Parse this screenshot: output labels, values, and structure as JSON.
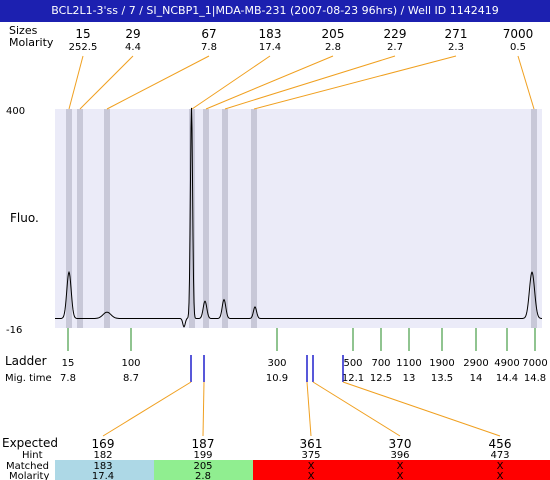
{
  "window": {
    "title": "BCL2L1-3'ss / 7 / SI_NCBP1_1|MDA-MB-231 (2007-08-23 96hrs) / Well ID 1142419"
  },
  "labels": {
    "sizes": "Sizes",
    "molarity": "Molarity",
    "fluo": "Fluo.",
    "ladder": "Ladder",
    "mig_time": "Mig. time",
    "expected": "Expected",
    "hint": "Hint",
    "matched": "Matched",
    "molarity_bottom": "Molarity",
    "y_max": "400",
    "y_min": "-16"
  },
  "colors": {
    "title_bg": "#1c20b0",
    "plot_bg": "#ebebf8",
    "peak_band": "#c8c8d8",
    "connector": "#f0a020",
    "ladder_tick": "#228822",
    "ladder_marker": "#2020cc",
    "expected_red": "#dd2222",
    "matched_blue": "#add8e6",
    "matched_green": "#90ee90",
    "matched_red": "#ff0000"
  },
  "chart_data": {
    "type": "line",
    "ylabel": "Fluo.",
    "ylim": [
      -16,
      400
    ],
    "peaks": [
      {
        "size": "15",
        "molarity": "252.5"
      },
      {
        "size": "29",
        "molarity": "4.4"
      },
      {
        "size": "67",
        "molarity": "7.8"
      },
      {
        "size": "183",
        "molarity": "17.4"
      },
      {
        "size": "205",
        "molarity": "2.8"
      },
      {
        "size": "229",
        "molarity": "2.7"
      },
      {
        "size": "271",
        "molarity": "2.3"
      },
      {
        "size": "7000",
        "molarity": "0.5"
      }
    ],
    "ladder": [
      {
        "size": "15",
        "time": "7.8"
      },
      {
        "size": "100",
        "time": "8.7"
      },
      {
        "size": "300",
        "time": "10.9"
      },
      {
        "size": "500",
        "time": "12.1"
      },
      {
        "size": "700",
        "time": "12.5"
      },
      {
        "size": "1100",
        "time": "13"
      },
      {
        "size": "1900",
        "time": "13.5"
      },
      {
        "size": "2900",
        "time": "14"
      },
      {
        "size": "4900",
        "time": "14.4"
      },
      {
        "size": "7000",
        "time": "14.8"
      }
    ],
    "expected": [
      {
        "expected": "169",
        "hint": "182",
        "matched": "183",
        "molarity": "17.4",
        "highlight": true,
        "status": "blue"
      },
      {
        "expected": "187",
        "hint": "199",
        "matched": "205",
        "molarity": "2.8",
        "highlight": true,
        "status": "green"
      },
      {
        "expected": "361",
        "hint": "375",
        "matched": "X",
        "molarity": "X",
        "highlight": false,
        "status": "red"
      },
      {
        "expected": "370",
        "hint": "396",
        "matched": "X",
        "molarity": "X",
        "highlight": false,
        "status": "red"
      },
      {
        "expected": "456",
        "hint": "473",
        "matched": "X",
        "molarity": "X",
        "highlight": false,
        "status": "red"
      }
    ]
  }
}
